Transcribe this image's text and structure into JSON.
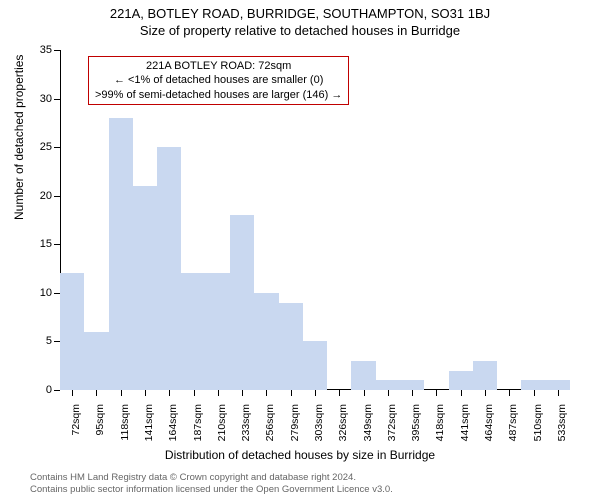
{
  "titles": {
    "line1": "221A, BOTLEY ROAD, BURRIDGE, SOUTHAMPTON, SO31 1BJ",
    "line2": "Size of property relative to detached houses in Burridge"
  },
  "chart": {
    "type": "histogram",
    "ylabel": "Number of detached properties",
    "xlabel": "Distribution of detached houses by size in Burridge",
    "ylim": [
      0,
      35
    ],
    "ytick_step": 5,
    "bar_color": "#c9d8f0",
    "bar_border_color": "#c9d8f0",
    "axis_color": "#000000",
    "background_color": "#ffffff",
    "annotation_border_color": "#c00000",
    "bar_width_ratio": 1.0,
    "categories": [
      "72sqm",
      "95sqm",
      "118sqm",
      "141sqm",
      "164sqm",
      "187sqm",
      "210sqm",
      "233sqm",
      "256sqm",
      "279sqm",
      "303sqm",
      "326sqm",
      "349sqm",
      "372sqm",
      "395sqm",
      "418sqm",
      "441sqm",
      "464sqm",
      "487sqm",
      "510sqm",
      "533sqm"
    ],
    "values": [
      12,
      6,
      28,
      21,
      25,
      12,
      12,
      18,
      10,
      9,
      5,
      0,
      3,
      1,
      1,
      0,
      2,
      3,
      0,
      1,
      1
    ]
  },
  "annotation": {
    "line1": "221A BOTLEY ROAD: 72sqm",
    "line2": "← <1% of detached houses are smaller (0)",
    "line3": ">99% of semi-detached houses are larger (146) →"
  },
  "footer": {
    "line1": "Contains HM Land Registry data © Crown copyright and database right 2024.",
    "line2": "Contains public sector information licensed under the Open Government Licence v3.0."
  }
}
